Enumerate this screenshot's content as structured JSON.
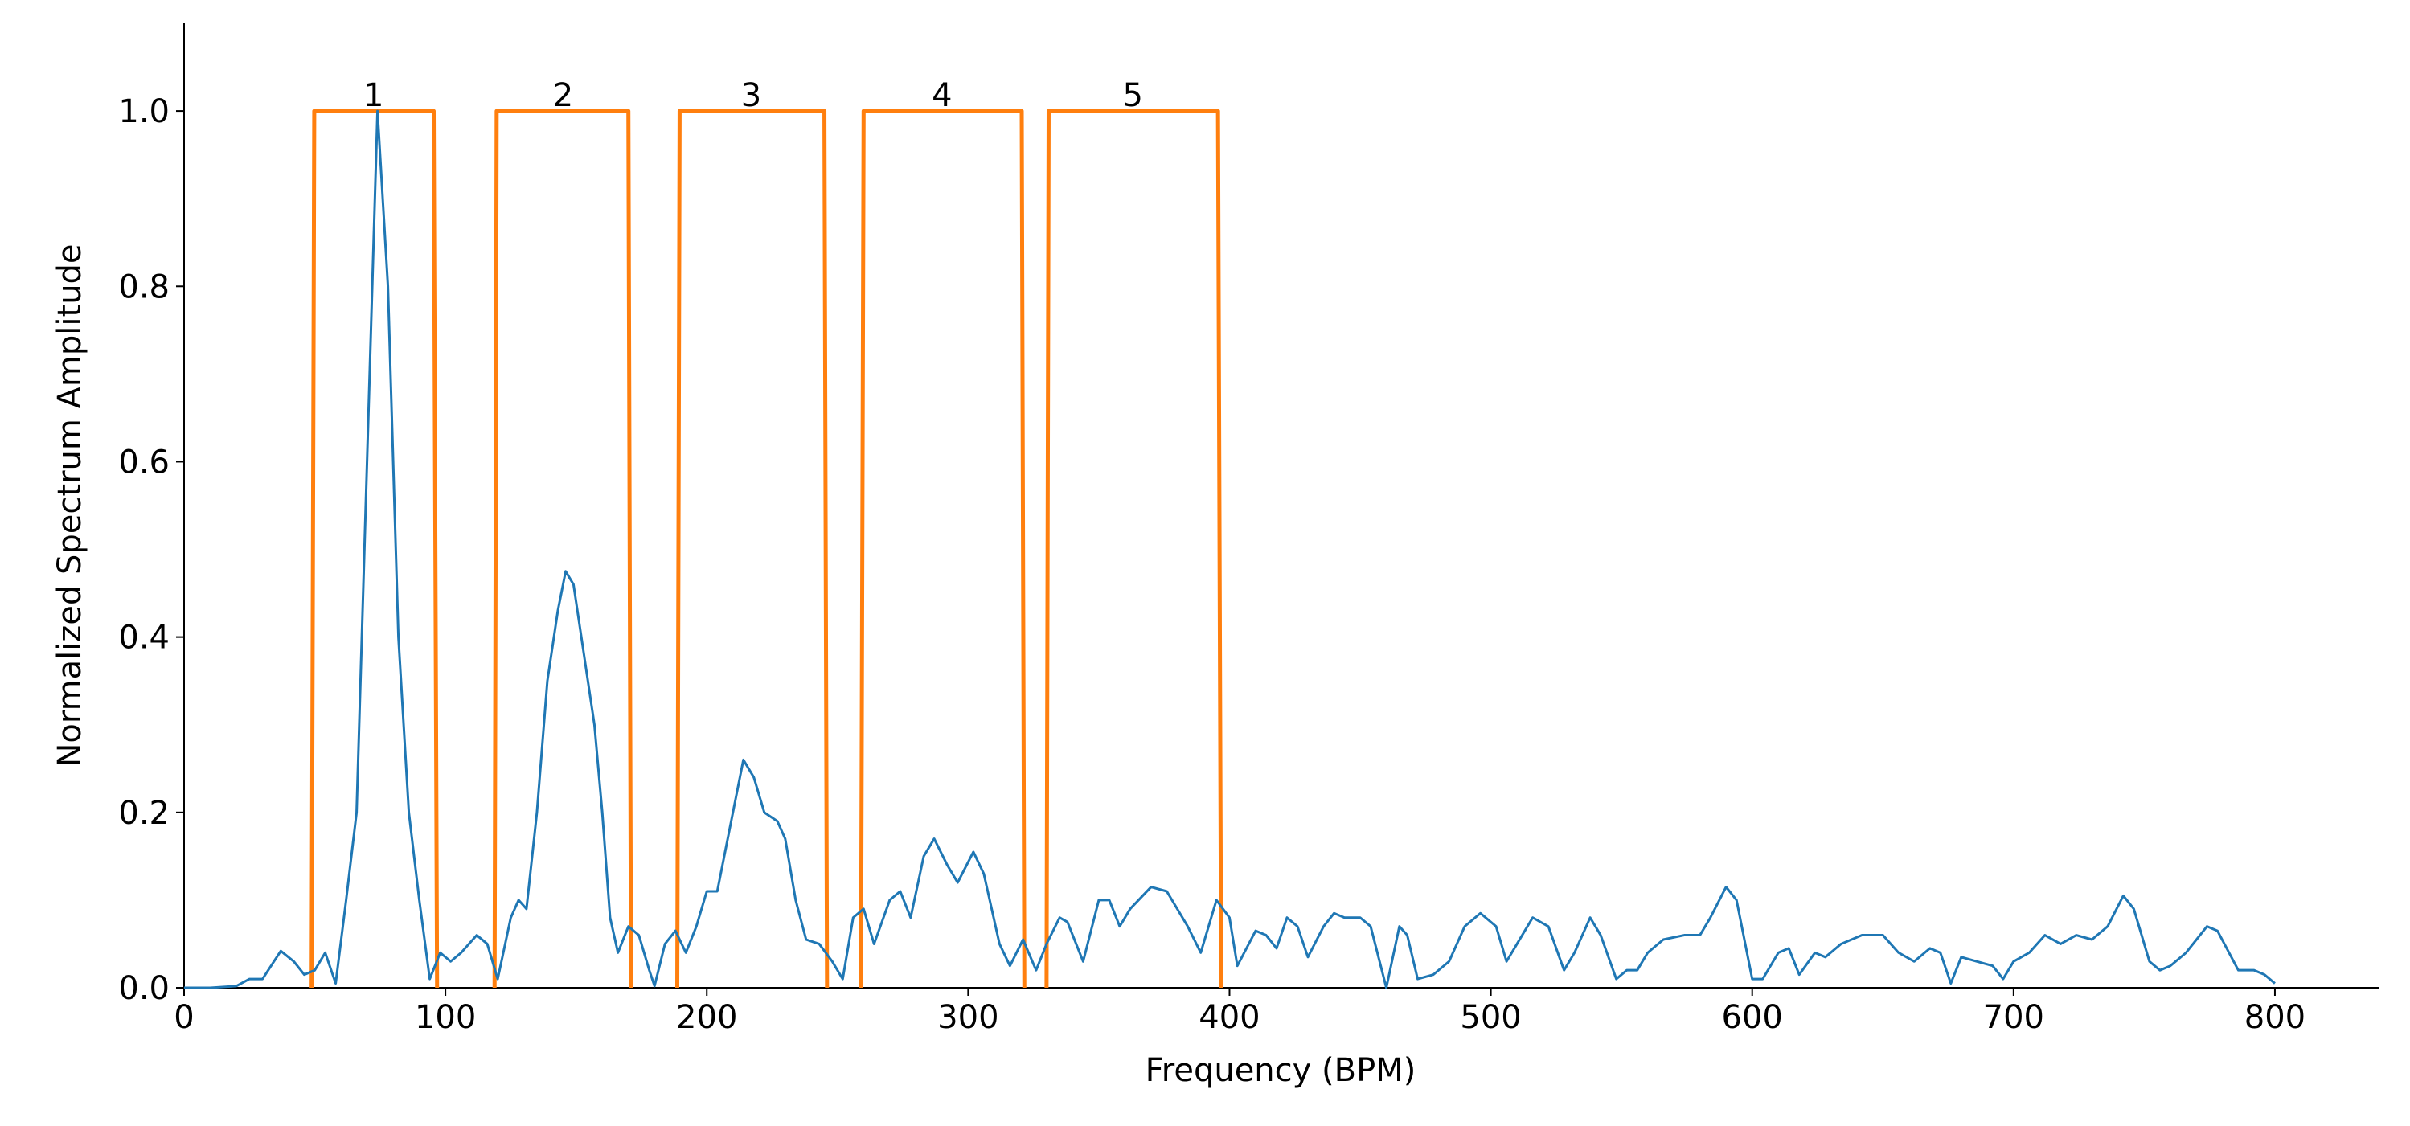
{
  "chart_data": {
    "type": "line",
    "xlabel": "Frequency (BPM)",
    "ylabel": "Normalized Spectrum Amplitude",
    "xlim": [
      0,
      840
    ],
    "ylim": [
      0,
      1.1
    ],
    "xticks": [
      0,
      100,
      200,
      300,
      400,
      500,
      600,
      700,
      800
    ],
    "yticks": [
      {
        "value": 0,
        "label": "0.0"
      },
      0.2,
      0.4,
      0.6,
      0.8,
      {
        "value": 1,
        "label": "1.0"
      }
    ],
    "grid": false,
    "series": [
      {
        "color": "#1f77b4",
        "x": [
          0,
          10,
          20,
          25,
          30,
          37,
          42,
          46,
          50,
          54,
          58,
          62,
          66,
          70,
          74,
          78,
          82,
          86,
          90,
          94,
          98,
          102,
          106,
          112,
          116,
          120,
          125,
          128,
          131,
          135,
          139,
          143,
          146,
          149,
          153,
          157,
          160,
          163,
          166,
          170,
          174,
          178,
          180,
          184,
          188,
          192,
          196,
          200,
          204,
          208,
          214,
          218,
          222,
          227,
          230,
          234,
          238,
          243,
          248,
          252,
          256,
          260,
          264,
          270,
          274,
          278,
          283,
          287,
          292,
          296,
          302,
          306,
          312,
          316,
          321,
          326,
          330,
          335,
          338,
          344,
          350,
          354,
          358,
          362,
          370,
          376,
          384,
          389,
          395,
          400,
          403,
          410,
          414,
          418,
          422,
          426,
          430,
          436,
          440,
          444,
          450,
          454,
          460,
          465,
          468,
          472,
          478,
          484,
          490,
          496,
          502,
          506,
          510,
          516,
          522,
          528,
          532,
          538,
          542,
          548,
          552,
          556,
          560,
          566,
          574,
          580,
          584,
          590,
          594,
          600,
          604,
          610,
          614,
          618,
          624,
          628,
          634,
          642,
          650,
          656,
          662,
          668,
          672,
          676,
          680,
          686,
          692,
          696,
          700,
          706,
          712,
          718,
          724,
          730,
          736,
          742,
          746,
          752,
          756,
          760,
          766,
          774,
          778,
          786,
          792,
          796,
          800
        ],
        "values": [
          0,
          0,
          0.002,
          0.01,
          0.01,
          0.042,
          0.03,
          0.015,
          0.02,
          0.04,
          0.005,
          0.1,
          0.2,
          0.6,
          1.0,
          0.8,
          0.4,
          0.2,
          0.1,
          0.01,
          0.04,
          0.03,
          0.04,
          0.06,
          0.05,
          0.01,
          0.08,
          0.1,
          0.09,
          0.2,
          0.35,
          0.43,
          0.475,
          0.46,
          0.38,
          0.3,
          0.2,
          0.08,
          0.04,
          0.07,
          0.06,
          0.02,
          0.002,
          0.05,
          0.065,
          0.04,
          0.07,
          0.11,
          0.11,
          0.17,
          0.26,
          0.24,
          0.2,
          0.19,
          0.17,
          0.1,
          0.055,
          0.05,
          0.03,
          0.01,
          0.08,
          0.09,
          0.05,
          0.1,
          0.11,
          0.08,
          0.15,
          0.17,
          0.14,
          0.12,
          0.155,
          0.13,
          0.05,
          0.025,
          0.055,
          0.02,
          0.05,
          0.08,
          0.075,
          0.03,
          0.1,
          0.1,
          0.07,
          0.09,
          0.115,
          0.11,
          0.07,
          0.04,
          0.1,
          0.08,
          0.025,
          0.065,
          0.06,
          0.045,
          0.08,
          0.07,
          0.035,
          0.07,
          0.085,
          0.08,
          0.08,
          0.07,
          0.0,
          0.07,
          0.06,
          0.01,
          0.015,
          0.03,
          0.07,
          0.085,
          0.07,
          0.03,
          0.05,
          0.08,
          0.07,
          0.02,
          0.04,
          0.08,
          0.06,
          0.01,
          0.02,
          0.02,
          0.04,
          0.055,
          0.06,
          0.06,
          0.08,
          0.115,
          0.1,
          0.01,
          0.01,
          0.04,
          0.045,
          0.015,
          0.04,
          0.035,
          0.05,
          0.06,
          0.06,
          0.04,
          0.03,
          0.045,
          0.04,
          0.005,
          0.035,
          0.03,
          0.025,
          0.01,
          0.03,
          0.04,
          0.06,
          0.05,
          0.06,
          0.055,
          0.07,
          0.105,
          0.09,
          0.03,
          0.02,
          0.025,
          0.04,
          0.07,
          0.065,
          0.02,
          0.02,
          0.015,
          0.005
        ]
      },
      {
        "color": "#ff7f0e",
        "x": [
          48.8,
          49.8,
          95.5,
          96.8,
          null,
          118.8,
          119.6,
          170,
          171,
          null,
          188.7,
          189.6,
          245,
          246,
          null,
          259,
          260,
          320.5,
          321.5,
          null,
          330,
          330.8,
          395.6,
          396.8
        ],
        "values": [
          0,
          1,
          1,
          0,
          null,
          0,
          1,
          1,
          0,
          null,
          0,
          1,
          1,
          0,
          null,
          0,
          1,
          1,
          0,
          null,
          0,
          1,
          1,
          0
        ]
      }
    ],
    "annotations": [
      {
        "text": "1",
        "x": 72.5,
        "y": 1.0
      },
      {
        "text": "2",
        "x": 145,
        "y": 1.0
      },
      {
        "text": "3",
        "x": 217,
        "y": 1.0
      },
      {
        "text": "4",
        "x": 290,
        "y": 1.0
      },
      {
        "text": "5",
        "x": 363,
        "y": 1.0
      }
    ]
  }
}
